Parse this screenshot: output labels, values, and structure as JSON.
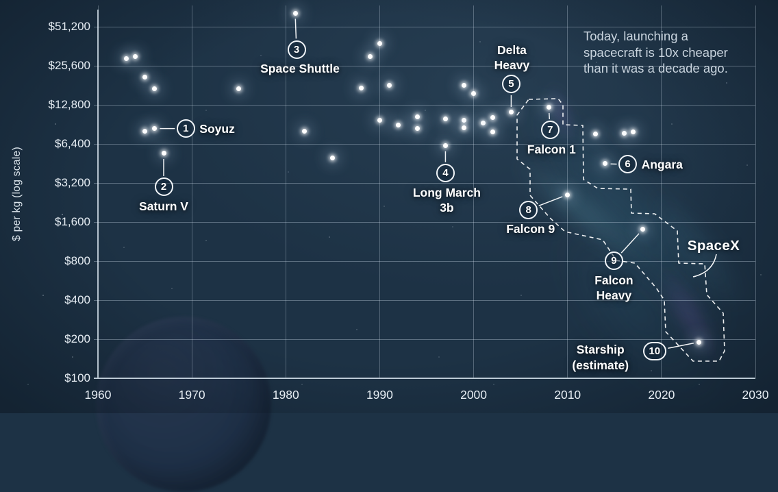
{
  "note": "Today, launching a\nspacecraft is 10x cheaper\nthan it was a decade ago.",
  "region_label": "SpaceX",
  "colors": {
    "background": "#1d3245",
    "dot": "#ffffff",
    "grid_text": "#e6edf3",
    "note_text": "#c9d4de",
    "nebula_teal": "#4fa0b8",
    "nebula_purple": "#8a66c8"
  },
  "y_axis": {
    "title": "$ per kg (log scale)",
    "ticks": [
      {
        "value": 51200,
        "label": "$51,200"
      },
      {
        "value": 25600,
        "label": "$25,600"
      },
      {
        "value": 12800,
        "label": "$12,800"
      },
      {
        "value": 6400,
        "label": "$6,400"
      },
      {
        "value": 3200,
        "label": "$3,200"
      },
      {
        "value": 1600,
        "label": "$1,600"
      },
      {
        "value": 800,
        "label": "$800"
      },
      {
        "value": 400,
        "label": "$400"
      },
      {
        "value": 200,
        "label": "$200"
      },
      {
        "value": 100,
        "label": "$100"
      }
    ]
  },
  "x_axis": {
    "ticks": [
      {
        "value": 1960,
        "label": "1960"
      },
      {
        "value": 1970,
        "label": "1970"
      },
      {
        "value": 1980,
        "label": "1980"
      },
      {
        "value": 1990,
        "label": "1990"
      },
      {
        "value": 2000,
        "label": "2000"
      },
      {
        "value": 2010,
        "label": "2010"
      },
      {
        "value": 2020,
        "label": "2020"
      },
      {
        "value": 2030,
        "label": "2030"
      }
    ]
  },
  "chart_data": {
    "type": "scatter",
    "ylabel": "$ per kg (log scale)",
    "x_range": [
      1960,
      2030
    ],
    "y_range": [
      100,
      51200
    ],
    "y_scale": "log2",
    "grid": true,
    "points": [
      {
        "year": 1963,
        "usd_per_kg": 29000
      },
      {
        "year": 1964,
        "usd_per_kg": 30000
      },
      {
        "year": 1965,
        "usd_per_kg": 21000
      },
      {
        "year": 1966,
        "usd_per_kg": 17000
      },
      {
        "year": 1965,
        "usd_per_kg": 8000
      },
      {
        "year": 1966,
        "usd_per_kg": 8400
      },
      {
        "year": 1967,
        "usd_per_kg": 5400
      },
      {
        "year": 1975,
        "usd_per_kg": 17000
      },
      {
        "year": 1981,
        "usd_per_kg": 65000
      },
      {
        "year": 1982,
        "usd_per_kg": 8000
      },
      {
        "year": 1985,
        "usd_per_kg": 5000
      },
      {
        "year": 1988,
        "usd_per_kg": 17200
      },
      {
        "year": 1989,
        "usd_per_kg": 30000
      },
      {
        "year": 1990,
        "usd_per_kg": 38000
      },
      {
        "year": 1990,
        "usd_per_kg": 9700
      },
      {
        "year": 1991,
        "usd_per_kg": 18000
      },
      {
        "year": 1992,
        "usd_per_kg": 8900
      },
      {
        "year": 1994,
        "usd_per_kg": 10400
      },
      {
        "year": 1994,
        "usd_per_kg": 8400
      },
      {
        "year": 1997,
        "usd_per_kg": 10000
      },
      {
        "year": 1997,
        "usd_per_kg": 6200
      },
      {
        "year": 1999,
        "usd_per_kg": 18000
      },
      {
        "year": 1999,
        "usd_per_kg": 9700
      },
      {
        "year": 1999,
        "usd_per_kg": 8500
      },
      {
        "year": 2000,
        "usd_per_kg": 15600
      },
      {
        "year": 2001,
        "usd_per_kg": 9300
      },
      {
        "year": 2002,
        "usd_per_kg": 10200
      },
      {
        "year": 2002,
        "usd_per_kg": 7900
      },
      {
        "year": 2004,
        "usd_per_kg": 11200
      },
      {
        "year": 2008,
        "usd_per_kg": 12200
      },
      {
        "year": 2010,
        "usd_per_kg": 2600
      },
      {
        "year": 2013,
        "usd_per_kg": 7600
      },
      {
        "year": 2014,
        "usd_per_kg": 4500
      },
      {
        "year": 2016,
        "usd_per_kg": 7700
      },
      {
        "year": 2017,
        "usd_per_kg": 7900
      },
      {
        "year": 2018,
        "usd_per_kg": 1400
      },
      {
        "year": 2024,
        "usd_per_kg": 190
      }
    ],
    "annotations": [
      {
        "num": 1,
        "label": "Soyuz",
        "year": 1966,
        "usd_per_kg": 8400
      },
      {
        "num": 2,
        "label": "Saturn V",
        "year": 1967,
        "usd_per_kg": 5400
      },
      {
        "num": 3,
        "label": "Space Shuttle",
        "year": 1981,
        "usd_per_kg": 65000
      },
      {
        "num": 4,
        "label": "Long March\n3b",
        "year": 1997,
        "usd_per_kg": 6200
      },
      {
        "num": 5,
        "label": "Delta\nHeavy",
        "year": 2004,
        "usd_per_kg": 11200
      },
      {
        "num": 6,
        "label": "Angara",
        "year": 2014,
        "usd_per_kg": 4500
      },
      {
        "num": 7,
        "label": "Falcon 1",
        "year": 2008,
        "usd_per_kg": 12200
      },
      {
        "num": 8,
        "label": "Falcon 9",
        "year": 2010,
        "usd_per_kg": 2600
      },
      {
        "num": 9,
        "label": "Falcon\nHeavy",
        "year": 2018,
        "usd_per_kg": 1400
      },
      {
        "num": 10,
        "label": "Starship\n(estimate)",
        "year": 2024,
        "usd_per_kg": 190
      }
    ]
  }
}
